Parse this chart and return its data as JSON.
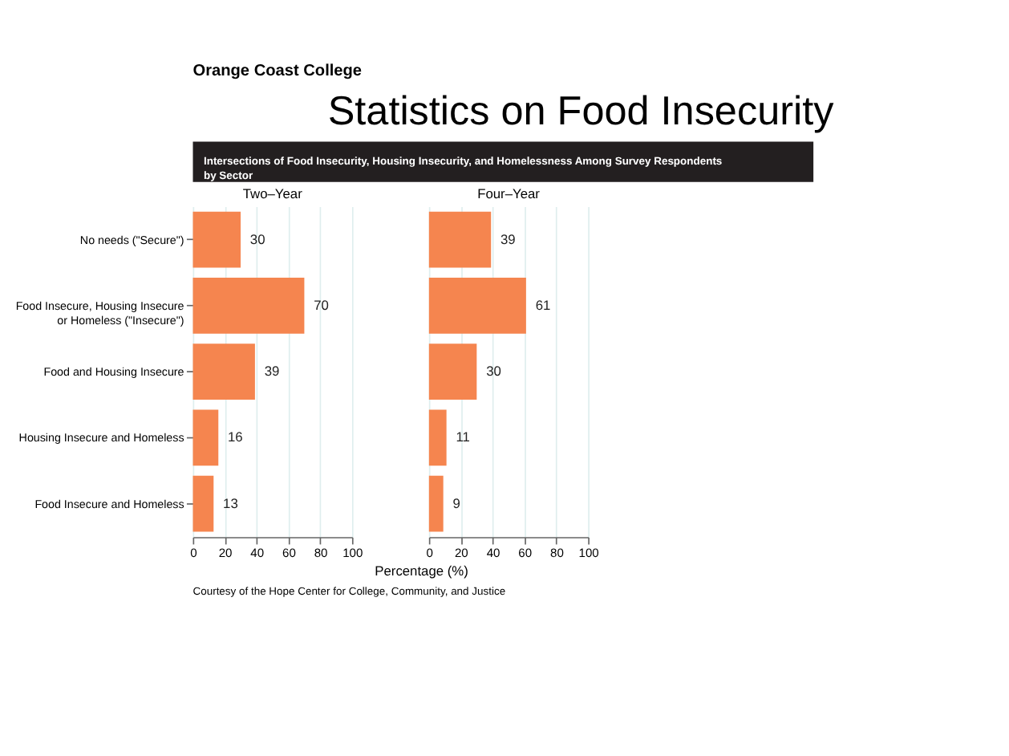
{
  "chart_data": [
    {
      "type": "bar",
      "orientation": "horizontal",
      "title": "Two–Year",
      "annotations": [
        "Orange Coast College",
        "Statistics on Food Insecurity",
        "Intersections of Food Insecurity, Housing Insecurity, and Homelessness Among Survey Respondents by Sector",
        "Courtesy of the Hope Center for College, Community, and Justice"
      ],
      "categories": [
        "No needs (\"Secure\")",
        "Food Insecure, Housing Insecure\nor Homeless (\"Insecure\")",
        "Food and Housing Insecure",
        "Housing Insecure and Homeless",
        "Food Insecure and Homeless"
      ],
      "values": [
        30,
        70,
        39,
        16,
        13
      ],
      "color": "#f5854f",
      "xlim": [
        0,
        100
      ],
      "xticks": [
        0,
        20,
        40,
        60,
        80,
        100
      ],
      "grid": "x",
      "data_labels": true
    },
    {
      "type": "bar",
      "orientation": "horizontal",
      "title": "Four–Year",
      "xlabel": "Percentage (%)",
      "categories": [
        null,
        null,
        null,
        null,
        null
      ],
      "values": [
        39,
        61,
        30,
        11,
        9
      ],
      "color": "#f5854f",
      "xlim": [
        0,
        100
      ],
      "xticks": [
        0,
        20,
        40,
        60,
        80,
        100
      ],
      "grid": "x",
      "data_labels": true,
      "tick_labels": "x"
    }
  ]
}
